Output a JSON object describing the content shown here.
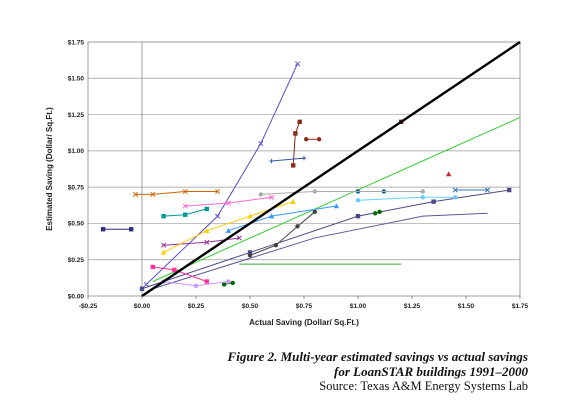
{
  "chart_data": {
    "type": "scatter",
    "xlabel": "Actual Saving (Dollar/ Sq.Ft.)",
    "ylabel": "Estimated Saving (Dollar/ Sq.Ft.)",
    "xlim": [
      -0.25,
      1.75
    ],
    "ylim": [
      0,
      1.75
    ],
    "x_ticks": [
      "-$0.25",
      "$0.00",
      "$0.25",
      "$0.50",
      "$0.75",
      "$1.00",
      "$1.25",
      "$1.50",
      "$1.75"
    ],
    "y_ticks": [
      "$0.00",
      "$0.25",
      "$0.50",
      "$0.75",
      "$1.00",
      "$1.25",
      "$1.50",
      "$1.75"
    ],
    "grid": "horizontal",
    "legend": "none",
    "reference_line": {
      "x": [
        0,
        1.75
      ],
      "y": [
        0,
        1.75
      ],
      "color": "#000000"
    },
    "series": [
      {
        "color": "#5a4fcf",
        "marker": "x",
        "x": [
          0.02,
          0.35,
          0.55,
          0.72
        ],
        "y": [
          0.08,
          0.55,
          1.05,
          1.6
        ]
      },
      {
        "color": "#33cc33",
        "marker": "none",
        "x": [
          0.05,
          1.75
        ],
        "y": [
          0.1,
          1.23
        ]
      },
      {
        "color": "#4a4a8a",
        "marker": "square",
        "x": [
          0.0,
          0.5,
          1.0,
          1.35,
          1.7
        ],
        "y": [
          0.05,
          0.3,
          0.55,
          0.65,
          0.73
        ]
      },
      {
        "color": "#5a5a9a",
        "marker": "none",
        "x": [
          0.05,
          0.8,
          1.3,
          1.6
        ],
        "y": [
          0.05,
          0.4,
          0.55,
          0.57
        ]
      },
      {
        "color": "#444444",
        "marker": "circle",
        "x": [
          0.5,
          0.62,
          0.72,
          0.8
        ],
        "y": [
          0.28,
          0.35,
          0.48,
          0.58
        ]
      },
      {
        "color": "#8a2a1a",
        "marker": "square",
        "x": [
          0.7,
          0.71,
          0.73
        ],
        "y": [
          0.9,
          1.12,
          1.2
        ]
      },
      {
        "color": "#8a2a1a",
        "marker": "circle",
        "x": [
          0.76,
          0.82
        ],
        "y": [
          1.08,
          1.08
        ]
      },
      {
        "color": "#8a2a1a",
        "marker": "square",
        "x": [
          1.2
        ],
        "y": [
          1.2
        ]
      },
      {
        "color": "#3355aa",
        "marker": "plus",
        "x": [
          0.6,
          0.75
        ],
        "y": [
          0.93,
          0.95
        ]
      },
      {
        "color": "#2f2f7f",
        "marker": "square",
        "x": [
          -0.18,
          -0.05
        ],
        "y": [
          0.46,
          0.46
        ]
      },
      {
        "color": "#cc6600",
        "marker": "x",
        "x": [
          -0.03,
          0.05,
          0.2,
          0.35
        ],
        "y": [
          0.7,
          0.7,
          0.72,
          0.72
        ]
      },
      {
        "color": "#cc2222",
        "marker": "triangle",
        "x": [
          1.42
        ],
        "y": [
          0.84
        ]
      },
      {
        "color": "#993399",
        "marker": "x",
        "x": [
          0.1,
          0.3,
          0.45
        ],
        "y": [
          0.35,
          0.37,
          0.4
        ]
      },
      {
        "color": "#009999",
        "marker": "square",
        "x": [
          0.1,
          0.2,
          0.3
        ],
        "y": [
          0.55,
          0.56,
          0.6
        ]
      },
      {
        "color": "#ff66cc",
        "marker": "x",
        "x": [
          0.2,
          0.4,
          0.6
        ],
        "y": [
          0.62,
          0.64,
          0.68
        ]
      },
      {
        "color": "#3399ff",
        "marker": "triangle",
        "x": [
          0.4,
          0.6,
          0.9
        ],
        "y": [
          0.45,
          0.55,
          0.62
        ]
      },
      {
        "color": "#006600",
        "marker": "circle",
        "x": [
          0.38,
          0.42
        ],
        "y": [
          0.08,
          0.09
        ]
      },
      {
        "color": "#006600",
        "marker": "circle",
        "x": [
          1.08,
          1.1
        ],
        "y": [
          0.57,
          0.58
        ]
      },
      {
        "color": "#ff3399",
        "marker": "square",
        "x": [
          0.05,
          0.15,
          0.3
        ],
        "y": [
          0.2,
          0.18,
          0.1
        ]
      },
      {
        "color": "#cc99ff",
        "marker": "circle",
        "x": [
          0.1,
          0.25,
          0.4
        ],
        "y": [
          0.1,
          0.07,
          0.1
        ]
      },
      {
        "color": "#006699",
        "marker": "circle",
        "x": [
          1.0,
          1.12
        ],
        "y": [
          0.72,
          0.72
        ]
      },
      {
        "color": "#66ccff",
        "marker": "circle",
        "x": [
          1.0,
          1.3,
          1.45
        ],
        "y": [
          0.66,
          0.68,
          0.68
        ]
      },
      {
        "color": "#3377bb",
        "marker": "x",
        "x": [
          1.45,
          1.6
        ],
        "y": [
          0.73,
          0.73
        ]
      },
      {
        "color": "#ffcc00",
        "marker": "triangle",
        "x": [
          0.1,
          0.3,
          0.5,
          0.7
        ],
        "y": [
          0.3,
          0.45,
          0.55,
          0.65
        ]
      },
      {
        "color": "#33aa33",
        "marker": "none",
        "x": [
          0.45,
          1.2
        ],
        "y": [
          0.22,
          0.22
        ]
      },
      {
        "color": "#aaaaaa",
        "marker": "circle",
        "x": [
          0.55,
          0.8,
          1.3
        ],
        "y": [
          0.7,
          0.72,
          0.72
        ]
      }
    ],
    "caption": {
      "line1": "Figure 2. Multi-year estimated savings vs actual savings",
      "line2": "for LoanSTAR buildings 1991–2000",
      "source": "Source: Texas A&M Energy Systems Lab"
    }
  }
}
